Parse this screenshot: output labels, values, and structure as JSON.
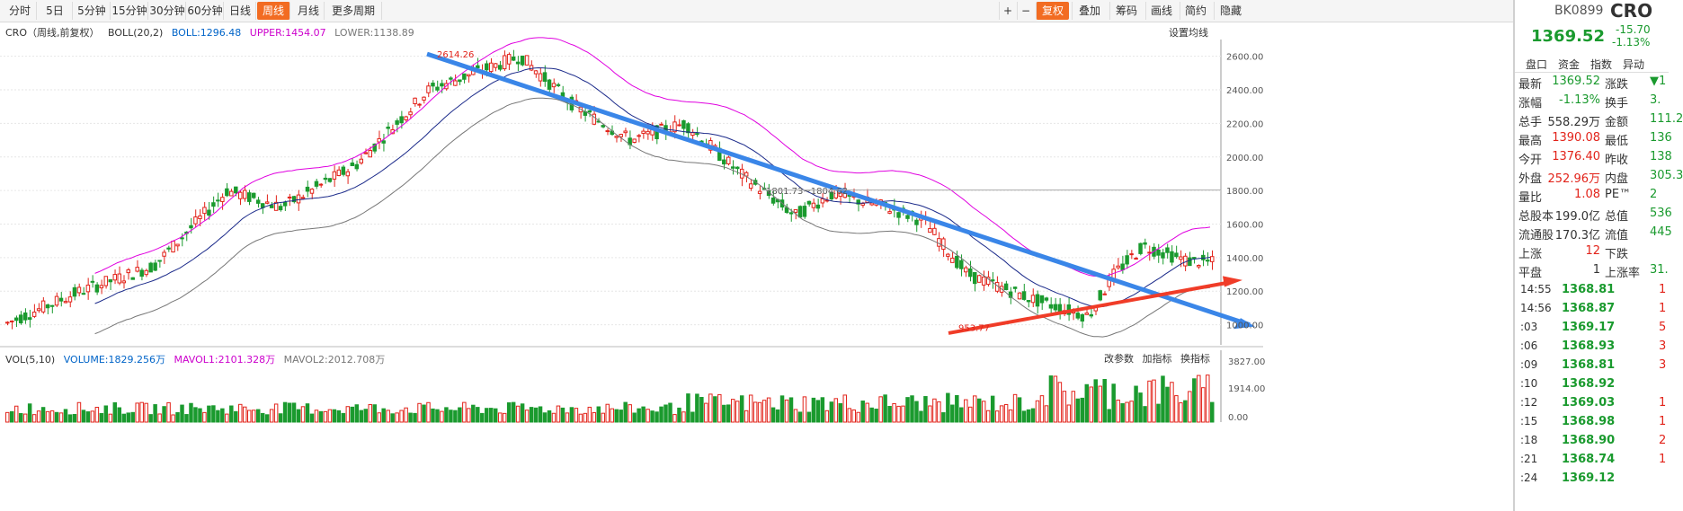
{
  "toolbar": {
    "tabs": [
      "分时",
      "5日",
      "5分钟",
      "15分钟",
      "30分钟",
      "60分钟",
      "日线",
      "周线",
      "月线",
      "更多周期"
    ],
    "active_tab": "周线",
    "right_tools": [
      "+",
      "−",
      "复权",
      "叠加",
      "筹码",
      "画线",
      "简约",
      "隐藏"
    ]
  },
  "indicator_line": {
    "name": "CRO（周线,前复权）",
    "boll": "BOLL(20,2)",
    "boll_val": "BOLL:1296.48",
    "upper": "UPPER:1454.07",
    "lower": "LOWER:1138.89",
    "settings": "设置均线"
  },
  "vol_line": {
    "name": "VOL(5,10)",
    "volume": "VOLUME:1829.256万",
    "mavol1": "MAVOL1:2101.328万",
    "mavol2": "MAVOL2:2012.708万",
    "btn1": "改参数",
    "btn2": "加指标",
    "btn3": "换指标"
  },
  "chart_data": {
    "type": "candlestick",
    "y_ticks": [
      "2600.00",
      "2400.00",
      "2200.00",
      "2000.00",
      "1800.00",
      "1600.00",
      "1400.00",
      "1200.00",
      "1000.00"
    ],
    "vol_ticks": [
      "3827.00",
      "1914.00",
      "0.00"
    ],
    "annotations": {
      "high": "2614.26",
      "low": "953.77",
      "mid": "1801.73~1804.62"
    },
    "ylim": [
      880,
      2700
    ]
  },
  "side": {
    "code": "BK0899",
    "name": "CRO",
    "price": "1369.52",
    "change": "-15.70",
    "change_pct": "-1.13%",
    "tabs": [
      "盘口",
      "资金",
      "指数",
      "异动"
    ],
    "rows": [
      {
        "k1": "最新",
        "v1": "1369.52",
        "k2": "涨跌",
        "v2": "▼1"
      },
      {
        "k1": "涨幅",
        "v1": "-1.13%",
        "k2": "换手",
        "v2": "3."
      },
      {
        "k1": "总手",
        "v1": "558.29万",
        "k2": "金额",
        "v2": "111.2"
      },
      {
        "k1": "最高",
        "v1": "1390.08",
        "k2": "最低",
        "v2": "136"
      },
      {
        "k1": "今开",
        "v1": "1376.40",
        "k2": "昨收",
        "v2": "138"
      },
      {
        "k1": "外盘",
        "v1": "252.96万",
        "k2": "内盘",
        "v2": "305.3"
      },
      {
        "k1": "量比",
        "v1": "1.08",
        "k2": "PE™",
        "v2": "2"
      },
      {
        "k1": "总股本",
        "v1": "199.0亿",
        "k2": "总值",
        "v2": "536"
      },
      {
        "k1": "流通股",
        "v1": "170.3亿",
        "k2": "流值",
        "v2": "445"
      },
      {
        "k1": "上涨",
        "v1": "12",
        "k2": "下跌",
        "v2": ""
      },
      {
        "k1": "平盘",
        "v1": "1",
        "k2": "上涨率",
        "v2": "31."
      }
    ],
    "ticks": [
      {
        "t": "14:55",
        "p": "1368.81",
        "v": "1"
      },
      {
        "t": "14:56",
        "p": "1368.87",
        "v": "1"
      },
      {
        "t": ":03",
        "p": "1369.17",
        "v": "5"
      },
      {
        "t": ":06",
        "p": "1368.93",
        "v": "3"
      },
      {
        "t": ":09",
        "p": "1368.81",
        "v": "3"
      },
      {
        "t": ":10",
        "p": "1368.92",
        "v": ""
      },
      {
        "t": ":12",
        "p": "1369.03",
        "v": "1"
      },
      {
        "t": ":15",
        "p": "1368.98",
        "v": "1"
      },
      {
        "t": ":18",
        "p": "1368.90",
        "v": "2"
      },
      {
        "t": ":21",
        "p": "1368.74",
        "v": "1"
      },
      {
        "t": ":24",
        "p": "1369.12",
        "v": ""
      }
    ]
  }
}
